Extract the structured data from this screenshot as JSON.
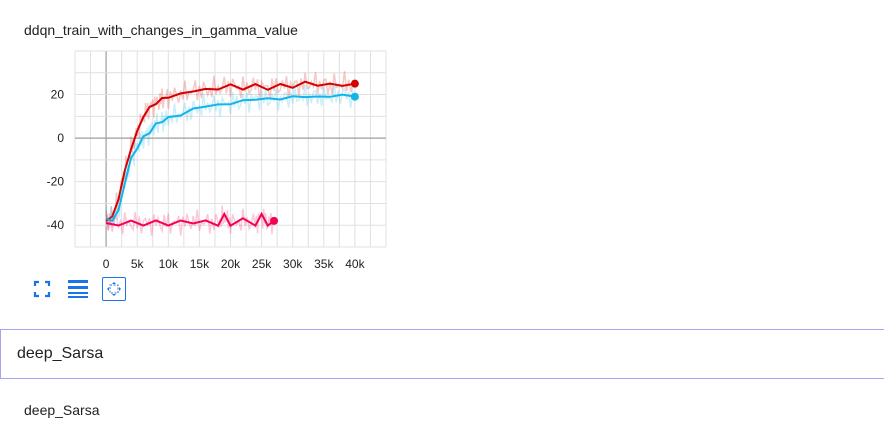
{
  "card": {
    "title": "ddqn_train_with_changes_in_gamma_value"
  },
  "toolbar": {
    "fit_icon": "fit-domain-icon",
    "legend_icon": "toggle-log-icon",
    "zoom_icon": "zoom-reset-icon"
  },
  "section": {
    "header": "deep_Sarsa",
    "subtitle": "deep_Sarsa"
  },
  "colors": {
    "red": "#d50000",
    "blue": "#11b5ea",
    "pink": "#f50057",
    "grid": "#e0e0e0",
    "zero": "#9e9e9e"
  },
  "chart_data": {
    "type": "line",
    "title": "ddqn_train_with_changes_in_gamma_value",
    "xlim": [
      -5000,
      45000
    ],
    "ylim": [
      -50,
      40
    ],
    "xticks": [
      0,
      5000,
      10000,
      15000,
      20000,
      25000,
      30000,
      35000,
      40000
    ],
    "xtick_labels": [
      "0",
      "5k",
      "10k",
      "15k",
      "20k",
      "25k",
      "30k",
      "35k",
      "40k"
    ],
    "yticks": [
      20,
      0,
      -20,
      -40
    ],
    "ytick_labels": [
      "20",
      "0",
      "-20",
      "-40"
    ],
    "grid": true,
    "series": [
      {
        "color": "#d50000",
        "x": [
          0,
          1000,
          2000,
          3000,
          4000,
          5000,
          6000,
          7000,
          8000,
          9000,
          10000,
          12000,
          14000,
          16000,
          18000,
          20000,
          22000,
          24000,
          26000,
          28000,
          30000,
          32000,
          34000,
          36000,
          38000,
          40000
        ],
        "y": [
          -38,
          -36,
          -28,
          -15,
          -5,
          3,
          10,
          14,
          16,
          18,
          19,
          20,
          22,
          22,
          23,
          24,
          23,
          24,
          23,
          24,
          24,
          25,
          25,
          24,
          25,
          25
        ]
      },
      {
        "color": "#11b5ea",
        "x": [
          0,
          1000,
          2000,
          3000,
          4000,
          5000,
          6000,
          7000,
          8000,
          9000,
          10000,
          12000,
          14000,
          16000,
          18000,
          20000,
          22000,
          24000,
          26000,
          28000,
          30000,
          32000,
          34000,
          36000,
          38000,
          40000
        ],
        "y": [
          -37,
          -37,
          -34,
          -20,
          -10,
          -4,
          0,
          3,
          6,
          8,
          9,
          11,
          13,
          15,
          15,
          16,
          17,
          18,
          18,
          18,
          19,
          19,
          19,
          19,
          20,
          19
        ]
      },
      {
        "color": "#f50057",
        "x": [
          0,
          2000,
          4000,
          6000,
          8000,
          10000,
          12000,
          14000,
          16000,
          18000,
          19000,
          20000,
          22000,
          24000,
          25000,
          26000,
          27000
        ],
        "y": [
          -39,
          -39,
          -39,
          -39,
          -39,
          -39,
          -39,
          -38,
          -39,
          -39,
          -36,
          -39,
          -38,
          -39,
          -36,
          -39,
          -38
        ]
      }
    ]
  }
}
